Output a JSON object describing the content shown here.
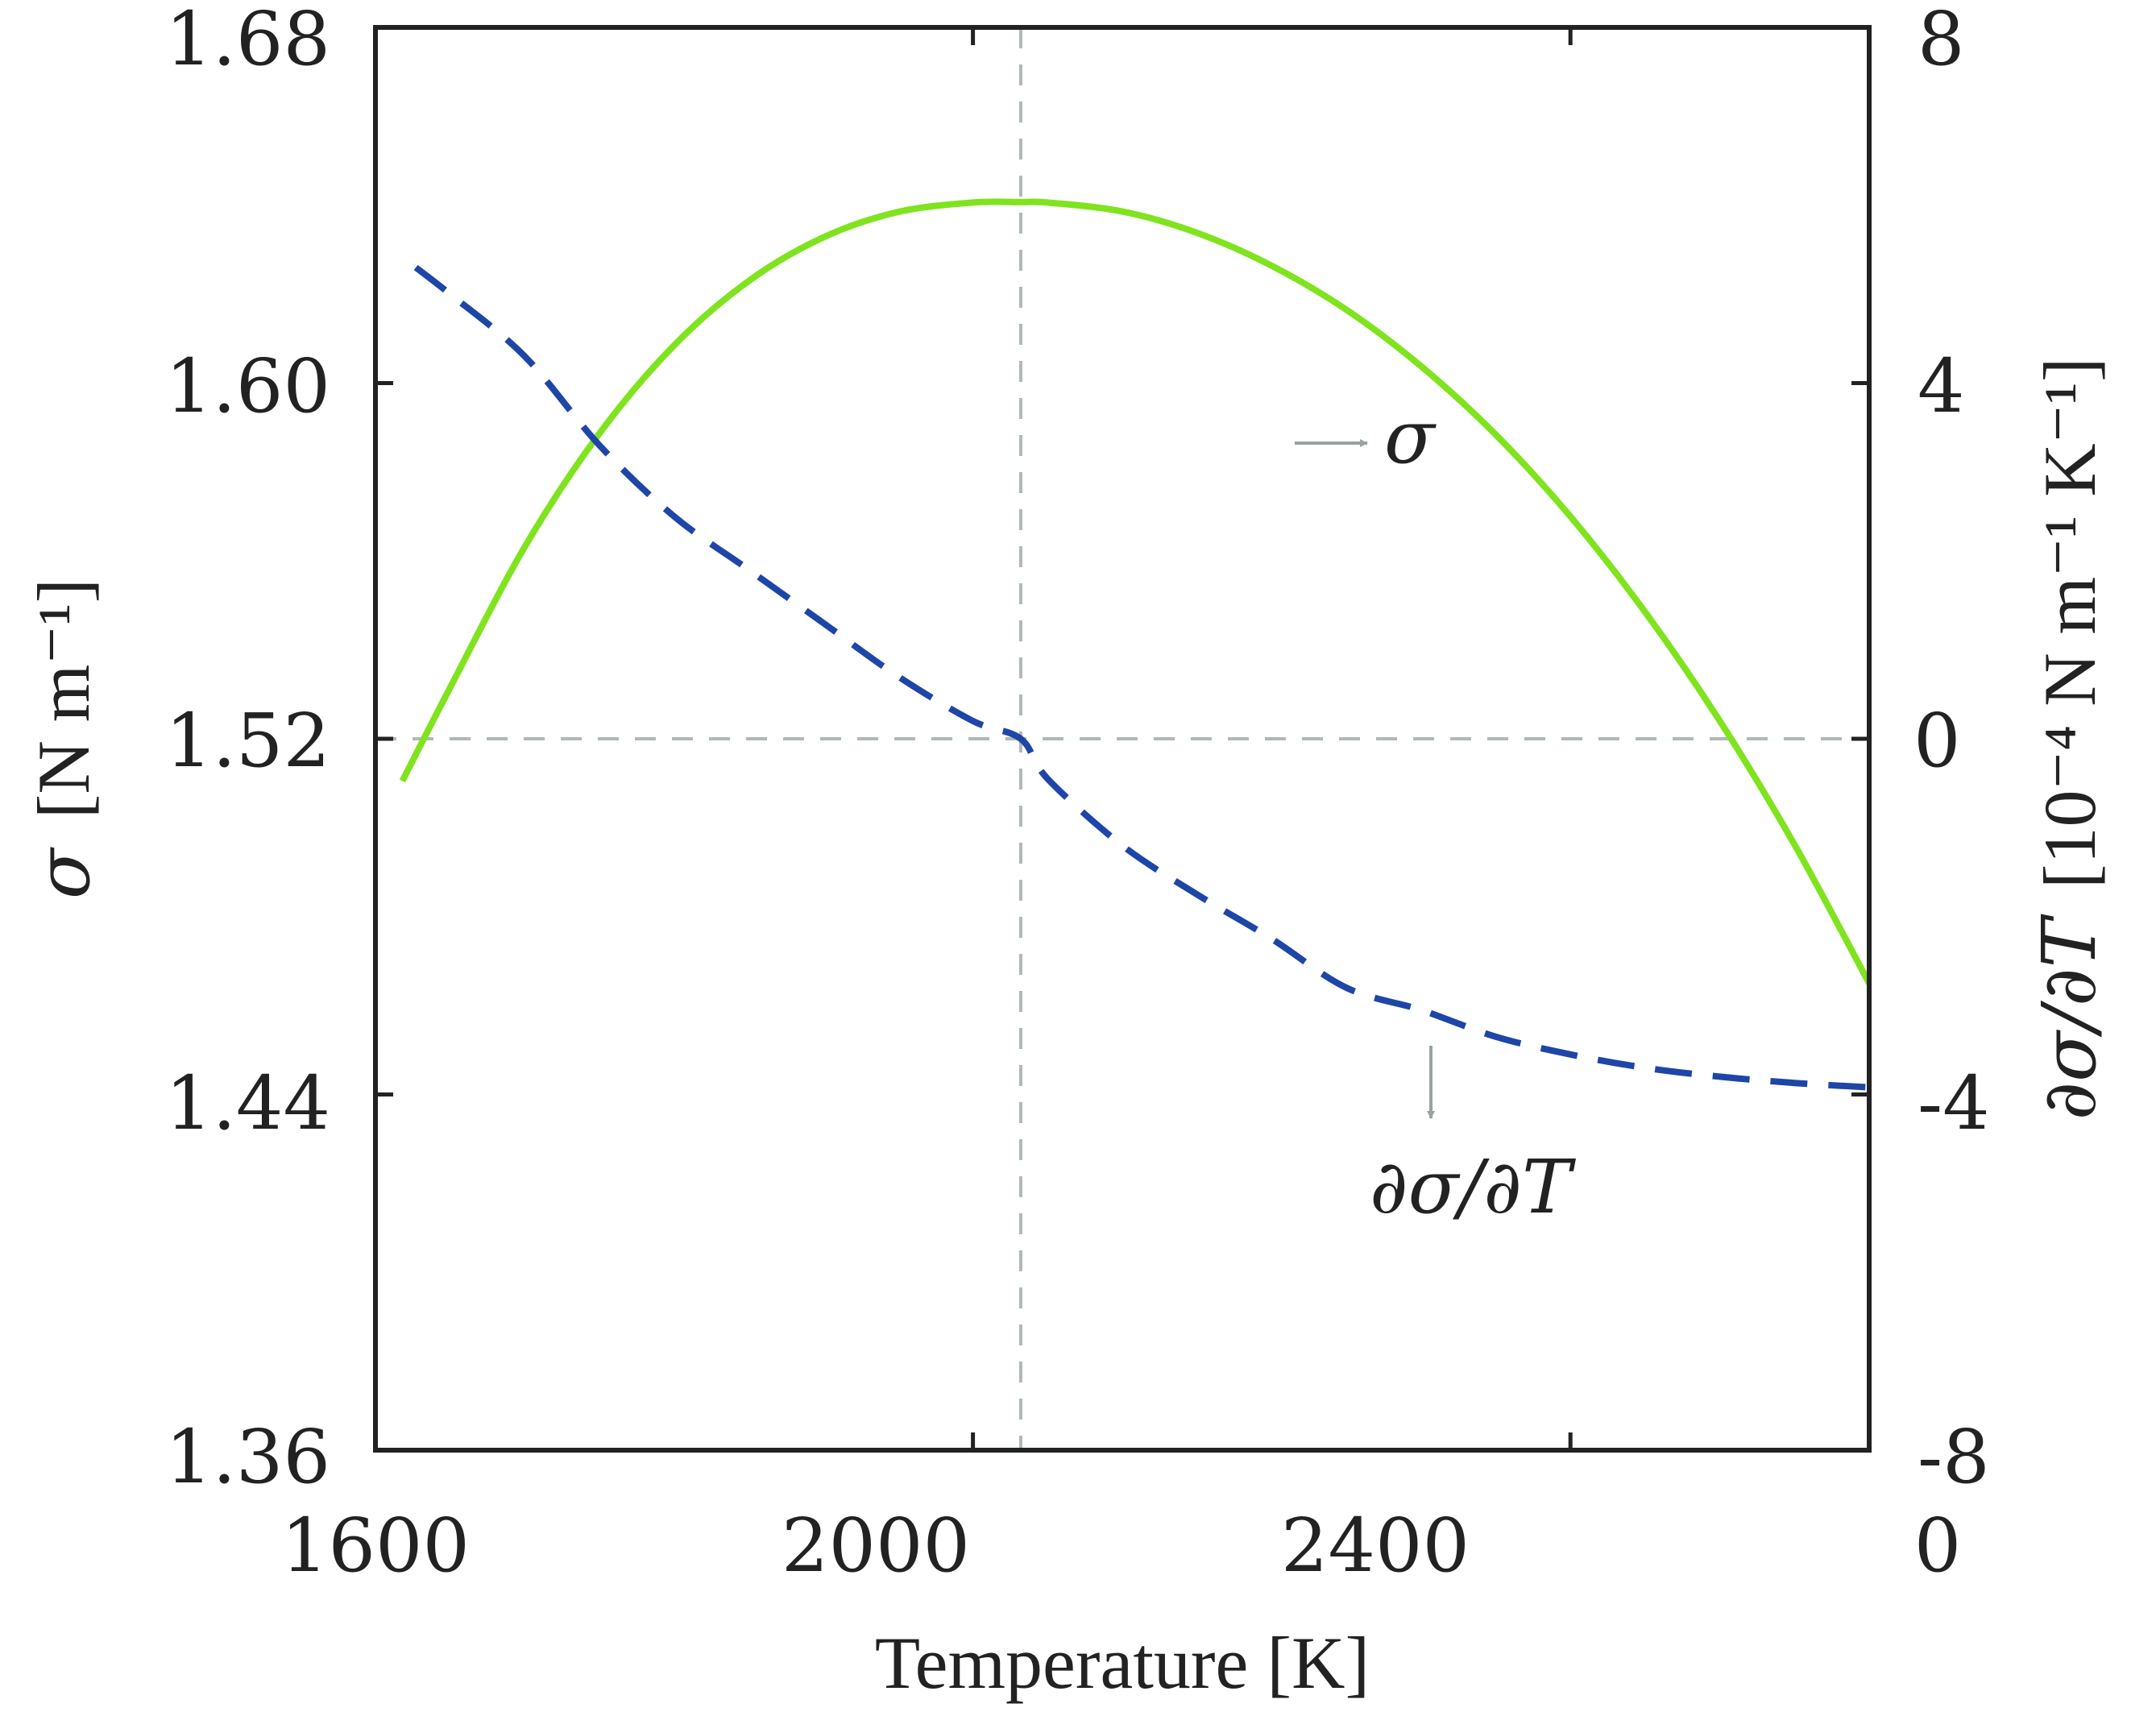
{
  "chart_data": {
    "type": "line",
    "title": "",
    "xlabel": "Temperature [K]",
    "xlim": [
      1600,
      2600
    ],
    "x_ticks": [
      "1600",
      "2000",
      "2400"
    ],
    "x_end_label": "0",
    "y_left": {
      "label_symbol": "σ",
      "label_units": "[N m⁻¹]",
      "ylim": [
        1.36,
        1.68
      ],
      "ticks": [
        "1.36",
        "1.44",
        "1.52",
        "1.60",
        "1.68"
      ]
    },
    "y_right": {
      "label_symbol": "∂σ/∂T",
      "label_units": "[10⁻⁴ N m⁻¹ K⁻¹]",
      "ylim": [
        -8,
        8
      ],
      "ticks": [
        "-8",
        "-4",
        "0",
        "4",
        "8"
      ]
    },
    "reference_lines": {
      "vertical_x": 2032,
      "horizontal_y_left": 1.52,
      "color": "#b0b8b8"
    },
    "series": [
      {
        "name": "σ",
        "axis": "left",
        "style": "solid",
        "color": "#7fe31e",
        "x": [
          1618,
          1650,
          1700,
          1750,
          1800,
          1850,
          1900,
          1950,
          2000,
          2032,
          2050,
          2100,
          2150,
          2200,
          2250,
          2300,
          2350,
          2400,
          2450,
          2500,
          2550,
          2600
        ],
        "y": [
          1.5105,
          1.5315,
          1.5632,
          1.5887,
          1.6085,
          1.623,
          1.6328,
          1.6385,
          1.6406,
          1.6407,
          1.6406,
          1.6386,
          1.6338,
          1.6264,
          1.6165,
          1.6038,
          1.5884,
          1.57,
          1.5485,
          1.524,
          1.4962,
          1.465
        ]
      },
      {
        "name": "∂σ/∂T",
        "axis": "right",
        "style": "dashed",
        "color": "#1e46a8",
        "x": [
          1627,
          1650,
          1700,
          1750,
          1800,
          1850,
          1900,
          1950,
          2000,
          2032,
          2050,
          2100,
          2150,
          2200,
          2250,
          2300,
          2350,
          2400,
          2450,
          2500,
          2550,
          2600
        ],
        "y": [
          5.3,
          5.0,
          4.3,
          3.3,
          2.5,
          1.9,
          1.3,
          0.7,
          0.2,
          0.0,
          -0.45,
          -1.2,
          -1.75,
          -2.25,
          -2.8,
          -3.05,
          -3.35,
          -3.55,
          -3.7,
          -3.8,
          -3.87,
          -3.92
        ]
      }
    ],
    "annotations": [
      {
        "text": "σ",
        "points_to": "σ"
      },
      {
        "text": "∂σ/∂T",
        "points_to": "∂σ/∂T"
      }
    ]
  },
  "colors": {
    "axis": "#222222",
    "arrow": "#9aa2a2"
  }
}
